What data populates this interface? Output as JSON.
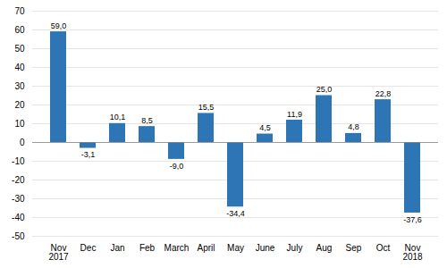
{
  "chart_data": {
    "type": "bar",
    "categories": [
      "Nov\n2017",
      "Dec",
      "Jan",
      "Feb",
      "March",
      "April",
      "May",
      "June",
      "July",
      "Aug",
      "Sep",
      "Oct",
      "Nov\n2018"
    ],
    "values": [
      59.0,
      -3.1,
      10.1,
      8.5,
      -9.0,
      15.5,
      -34.4,
      4.5,
      11.9,
      25.0,
      4.8,
      22.8,
      -37.6
    ],
    "value_labels": [
      "59,0",
      "-3,1",
      "10,1",
      "8,5",
      "-9,0",
      "15,5",
      "-34,4",
      "4,5",
      "11,9",
      "25,0",
      "4,8",
      "22,8",
      "-37,6"
    ],
    "data_labels": true,
    "color": "#2E75B6",
    "ylim": [
      -50,
      70
    ],
    "yticks": [
      -50,
      -40,
      -30,
      -20,
      -10,
      0,
      10,
      20,
      30,
      40,
      50,
      60,
      70
    ],
    "grid": true
  }
}
